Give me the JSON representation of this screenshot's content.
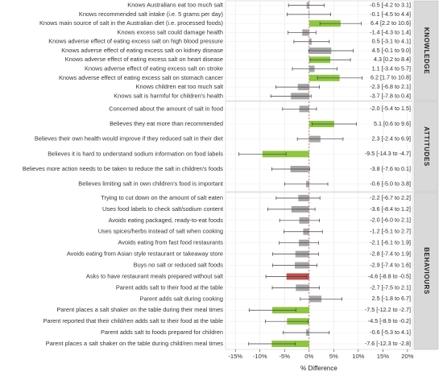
{
  "chart_data": {
    "type": "bar",
    "orientation": "horizontal",
    "xlabel": "% Difference",
    "xlim": [
      -17,
      21
    ],
    "xticks": [
      -15,
      -10,
      -5,
      0,
      5,
      10,
      15,
      20
    ],
    "xtick_labels": [
      "-15%",
      "-10%",
      "-5%",
      "0%",
      "5%",
      "10%",
      "15%",
      "20%"
    ],
    "reference_line": 0,
    "grid": true,
    "error_bars": true,
    "colors": {
      "non_significant": "#a6a6a6",
      "positive_significant": "#8dc63f",
      "negative_significant": "#c0504d"
    },
    "panels": [
      {
        "label": "KNOWLEDGE",
        "items": [
          {
            "label": "Knows Australians eat too much salt",
            "value": -0.5,
            "ci": [
              -4.2,
              3.1
            ],
            "text": "-0.5 [-4.2 to 3.1]",
            "color": "non_significant"
          },
          {
            "label": "Knows recommended salt intake (i.e. 5 grams per day)",
            "value": -0.1,
            "ci": [
              -4.5,
              4.4
            ],
            "text": "-0.1 [-4.5 to 4.4]",
            "color": "non_significant"
          },
          {
            "label": "Knows main source of salt in the Australian diet (i.e. processed foods)",
            "value": 6.4,
            "ci": [
              2.2,
              10.6
            ],
            "text": "6.4 [2.2 to 10.6]",
            "color": "positive_significant"
          },
          {
            "label": "Knows excess salt could damage health",
            "value": -1.4,
            "ci": [
              -4.3,
              1.4
            ],
            "text": "-1.4 [-4.3 to 1.4]",
            "color": "non_significant"
          },
          {
            "label": "Knows adverse effect of eating excess salt on high blood pressure",
            "value": 0.5,
            "ci": [
              -3.1,
              4.1
            ],
            "text": "0.5 [-3.1 to 4.1]",
            "color": "non_significant"
          },
          {
            "label": "Knows adverse effect of eating excess salt on kidney disease",
            "value": 4.5,
            "ci": [
              -0.1,
              9.0
            ],
            "text": "4.5 [-0.1 to 9.0]",
            "color": "non_significant"
          },
          {
            "label": "Knows adverse effect of eating excess salt on heart disease",
            "value": 4.3,
            "ci": [
              0.2,
              8.4
            ],
            "text": "4.3 [0.2 to 8.4]",
            "color": "positive_significant"
          },
          {
            "label": "Knows adverse effect of eating excess salt on stroke",
            "value": 1.1,
            "ci": [
              -3.4,
              5.7
            ],
            "text": "1.1 [-3.4 to 5.7]",
            "color": "non_significant"
          },
          {
            "label": "Knows adverse effect of eating excess salt on stomach cancer",
            "value": 6.2,
            "ci": [
              1.7,
              10.8
            ],
            "text": "6.2 [1.7 to 10.8]",
            "color": "positive_significant"
          },
          {
            "label": "Knows children eat too much salt",
            "value": -2.3,
            "ci": [
              -6.8,
              2.1
            ],
            "text": "-2.3 [-6.8 to 2.1]",
            "color": "non_significant"
          },
          {
            "label": "Knows salt is harmful for children's health",
            "value": -3.7,
            "ci": [
              -7.8,
              0.4
            ],
            "text": "-3.7 [-7.8 to 0.4]",
            "color": "non_significant"
          }
        ]
      },
      {
        "label": "ATTITUDES",
        "items": [
          {
            "label": "Concerned about the amount of salt in food",
            "value": -2.0,
            "ci": [
              -5.4,
              1.5
            ],
            "text": "-2.0 [-5.4 to 1.5]",
            "color": "non_significant"
          },
          {
            "label": "Believes they eat more than recommended",
            "value": 5.1,
            "ci": [
              0.6,
              9.6
            ],
            "text": "5.1 [0.6 to 9.6]",
            "color": "positive_significant"
          },
          {
            "label": "Believes their own health would improve if they reduced salt in their diet",
            "value": 2.3,
            "ci": [
              -2.4,
              6.9
            ],
            "text": "2.3 [-2.4 to 6.9]",
            "color": "non_significant"
          },
          {
            "label": "Believes it is hard to understand sodium information on food labels",
            "value": -9.5,
            "ci": [
              -14.3,
              -4.7
            ],
            "text": "-9.5 [-14.3 to -4.7]",
            "color": "positive_significant"
          },
          {
            "label": "Believes more action needs to be taken to reduce the salt in children's foods",
            "value": -3.8,
            "ci": [
              -7.6,
              0.1
            ],
            "text": "-3.8 [-7.6 to 0.1]",
            "color": "non_significant"
          },
          {
            "label": "Believes limiting salt in own children's food is important",
            "value": -0.6,
            "ci": [
              -5.0,
              3.8
            ],
            "text": "-0.6 [-5.0 to 3.8]",
            "color": "non_significant"
          }
        ]
      },
      {
        "label": "BEHAVIOURS",
        "items": [
          {
            "label": "Trying to cut down on the amount of salt eaten",
            "value": -2.2,
            "ci": [
              -6.7,
              2.2
            ],
            "text": "-2.2 [-6.7 to 2.2]",
            "color": "non_significant"
          },
          {
            "label": "Uses food labels to check salt/sodium content",
            "value": -3.6,
            "ci": [
              -8.4,
              1.2
            ],
            "text": "-3.6 [-8.4 to 1.2]",
            "color": "non_significant"
          },
          {
            "label": "Avoids eating packaged, ready-to-eat foods",
            "value": -2.0,
            "ci": [
              -6.0,
              2.1
            ],
            "text": "-2.0 [-6.0 to 2.1]",
            "color": "non_significant"
          },
          {
            "label": "Uses spices/herbs instead of salt when cooking",
            "value": -1.2,
            "ci": [
              -5.1,
              2.7
            ],
            "text": "-1.2 [-5.1 to 2.7]",
            "color": "non_significant"
          },
          {
            "label": "Avoids eating from fast food restaurants",
            "value": -2.1,
            "ci": [
              -6.1,
              1.9
            ],
            "text": "-2.1 [-6.1 to 1.9]",
            "color": "non_significant"
          },
          {
            "label": "Avoids eating from Asian style restaurant or takeaway store",
            "value": -2.8,
            "ci": [
              -7.4,
              1.9
            ],
            "text": "-2.8 [-7.4 to 1.9]",
            "color": "non_significant"
          },
          {
            "label": "Buys no salt or reduced salt foods",
            "value": -2.9,
            "ci": [
              -7.4,
              1.6
            ],
            "text": "-2.9 [-7.4 to 1.6]",
            "color": "non_significant"
          },
          {
            "label": "Asks to have restaurant meals prepared without salt",
            "value": -4.6,
            "ci": [
              -8.8,
              -0.5
            ],
            "text": "-4.6 [-8.8 to -0.5]",
            "color": "negative_significant"
          },
          {
            "label": "Parent adds salt to their food at the table",
            "value": -2.7,
            "ci": [
              -7.5,
              2.1
            ],
            "text": "-2.7 [-7.5 to 2.1]",
            "color": "non_significant"
          },
          {
            "label": "Parent adds salt during cooking",
            "value": 2.5,
            "ci": [
              -1.8,
              6.7
            ],
            "text": "2.5 [-1.8 to 6.7]",
            "color": "non_significant"
          },
          {
            "label": "Parent places a salt shaker on the table during their meal times",
            "value": -7.5,
            "ci": [
              -12.2,
              -2.7
            ],
            "text": "-7.5 [-12.2 to -2.7]",
            "color": "positive_significant"
          },
          {
            "label": "Parent reported that their child/ren adds salt to their food at the table",
            "value": -4.5,
            "ci": [
              -8.9,
              -0.2
            ],
            "text": "-4.5 [-8.9 to -0.2]",
            "color": "positive_significant"
          },
          {
            "label": "Parent adds salt to foods prepared for children",
            "value": -0.6,
            "ci": [
              -5.3,
              4.1
            ],
            "text": "-0.6 [-5.3 to 4.1]",
            "color": "non_significant"
          },
          {
            "label": "Parent places a salt shaker on the table during child/ren meal times",
            "value": -7.6,
            "ci": [
              -12.3,
              -2.8
            ],
            "text": "-7.6 [-12.3 to -2.8]",
            "color": "positive_significant"
          }
        ]
      }
    ]
  }
}
